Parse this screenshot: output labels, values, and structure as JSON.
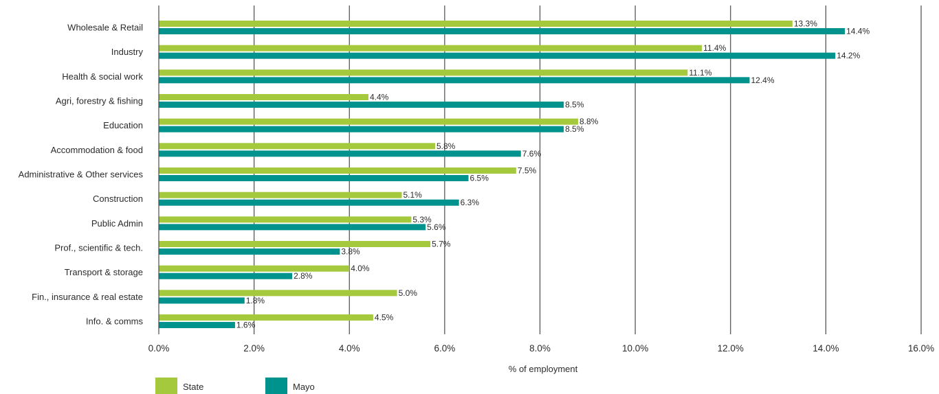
{
  "chart_data": {
    "type": "bar",
    "orientation": "horizontal",
    "categories": [
      "Wholesale & Retail",
      "Industry",
      "Health & social work",
      "Agri, forestry & fishing",
      "Education",
      "Accommodation & food",
      "Administrative & Other services",
      "Construction",
      "Public Admin",
      "Prof., scientific & tech.",
      "Transport & storage",
      "Fin., insurance & real estate",
      "Info. & comms"
    ],
    "series": [
      {
        "name": "State",
        "color": "#a5c93c",
        "values": [
          13.3,
          11.4,
          11.1,
          4.4,
          8.8,
          5.8,
          7.5,
          5.1,
          5.3,
          5.7,
          4.0,
          5.0,
          4.5
        ],
        "labels": [
          "13.3%",
          "11.4%",
          "11.1%",
          "4.4%",
          "8.8%",
          "5.8%",
          "7.5%",
          "5.1%",
          "5.3%",
          "5.7%",
          "4.0%",
          "5.0%",
          "4.5%"
        ]
      },
      {
        "name": "Mayo",
        "color": "#00928c",
        "values": [
          14.4,
          14.2,
          12.4,
          8.5,
          8.5,
          7.6,
          6.5,
          6.3,
          5.6,
          3.8,
          2.8,
          1.8,
          1.6
        ],
        "labels": [
          "14.4%",
          "14.2%",
          "12.4%",
          "8.5%",
          "8.5%",
          "7.6%",
          "6.5%",
          "6.3%",
          "5.6%",
          "3.8%",
          "2.8%",
          "1.8%",
          "1.6%"
        ]
      }
    ],
    "xlabel": "% of employment",
    "xlim": [
      0,
      16
    ],
    "xticks": [
      0,
      2,
      4,
      6,
      8,
      10,
      12,
      14,
      16
    ],
    "xtick_labels": [
      "0.0%",
      "2.0%",
      "4.0%",
      "6.0%",
      "8.0%",
      "10.0%",
      "12.0%",
      "14.0%",
      "16.0%"
    ],
    "grid": true,
    "legend": "bottom-left"
  }
}
